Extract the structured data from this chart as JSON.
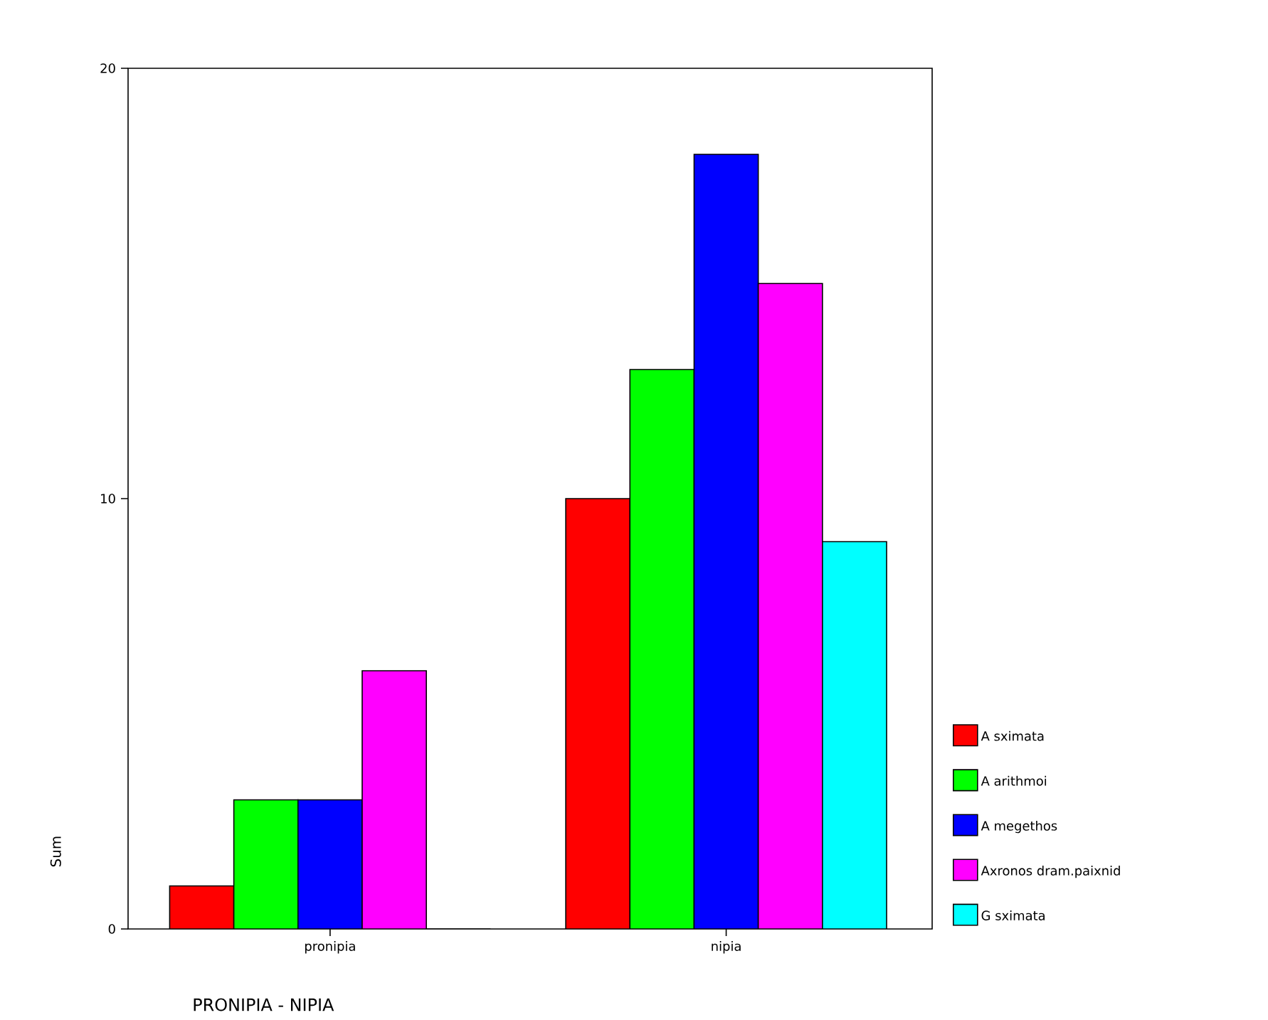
{
  "chart_data": {
    "type": "bar",
    "xlabel": "PRONIPIA - NIPIA",
    "ylabel": "Sum",
    "categories": [
      "pronipia",
      "nipia"
    ],
    "series": [
      {
        "name": "A sximata",
        "color": "#ff0000",
        "values": [
          1,
          10
        ]
      },
      {
        "name": "A arithmoi",
        "color": "#00ff00",
        "values": [
          3,
          13
        ]
      },
      {
        "name": "A megethos",
        "color": "#0000ff",
        "values": [
          3,
          18
        ]
      },
      {
        "name": "Axronos dram.paixnid",
        "color": "#ff00ff",
        "values": [
          6,
          15
        ]
      },
      {
        "name": "G sximata",
        "color": "#00ffff",
        "values": [
          0,
          9
        ]
      }
    ],
    "ylim": [
      0,
      20
    ],
    "yticks": [
      0,
      10,
      20
    ],
    "grid": false,
    "legend": "right"
  }
}
